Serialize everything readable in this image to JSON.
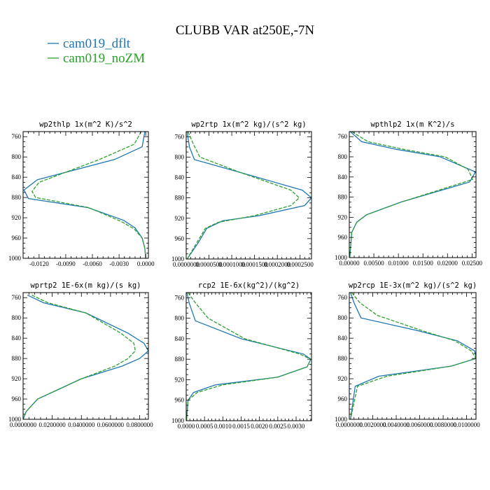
{
  "figure": {
    "title": "CLUBB VAR at250E,-7N"
  },
  "legend": [
    {
      "name": "cam019_dflt",
      "color": "#1f77b4",
      "dash": "solid"
    },
    {
      "name": "cam019_noZM",
      "color": "#2ca02c",
      "dash": "dash"
    }
  ],
  "chart_data": [
    {
      "type": "line",
      "title": "wp2thlp  1x(m^2 K)/s^2",
      "xlim": [
        -0.0138,
        0.0003
      ],
      "ylim": [
        1000,
        750
      ],
      "xticks": [
        -0.012,
        -0.009,
        -0.006,
        -0.003,
        0.0
      ],
      "xtick_labels": [
        "-0.0120",
        "-0.0090",
        "-0.0060",
        "-0.0030",
        "0.0000"
      ],
      "yticks": [
        760,
        800,
        840,
        880,
        920,
        960,
        1000
      ],
      "ytick_labels": [
        "760",
        "800",
        "840",
        "880",
        "920",
        "960",
        "1000"
      ],
      "series": [
        {
          "name": "cam019_dflt",
          "x": [
            -0.0001,
            -0.0004,
            -0.0035,
            -0.0122,
            -0.0137,
            -0.0132,
            -0.0065,
            -0.0025,
            -0.0012,
            -0.0004,
            -0.0001,
            0.0
          ],
          "y": [
            750,
            780,
            805,
            845,
            865,
            882,
            900,
            925,
            940,
            960,
            980,
            1000
          ]
        },
        {
          "name": "cam019_noZM",
          "x": [
            -0.0005,
            -0.0013,
            -0.0052,
            -0.012,
            -0.0128,
            -0.0124,
            -0.0064,
            -0.0028,
            -0.0013,
            -0.0004,
            -0.0001,
            0.0
          ],
          "y": [
            750,
            775,
            805,
            850,
            868,
            880,
            900,
            927,
            942,
            960,
            980,
            1000
          ]
        }
      ]
    },
    {
      "type": "line",
      "title": "wp2rtp  1x(m^2 kg)/(s^2 kg)",
      "xlim": [
        0.0,
        0.000275
      ],
      "ylim": [
        1000,
        750
      ],
      "xticks": [
        0.0,
        5e-05,
        0.0001,
        0.00015,
        0.0002,
        0.00025
      ],
      "xtick_labels": [
        "0.0000000",
        "0.0000500",
        "0.0001000",
        "0.0001500",
        "0.0002000",
        "0.0002500"
      ],
      "yticks": [
        760,
        800,
        840,
        880,
        920,
        960,
        1000
      ],
      "ytick_labels": [
        "760",
        "800",
        "840",
        "880",
        "920",
        "960",
        "1000"
      ],
      "series": [
        {
          "name": "cam019_dflt",
          "x": [
            2e-06,
            7e-06,
            1.8e-05,
            0.000118,
            0.000255,
            0.000275,
            0.00026,
            0.00016,
            8e-05,
            4.5e-05,
            2.5e-05,
            2e-06
          ],
          "y": [
            750,
            780,
            805,
            830,
            865,
            880,
            895,
            915,
            925,
            940,
            970,
            1000
          ]
        },
        {
          "name": "cam019_noZM",
          "x": [
            4e-06,
            1.6e-05,
            3e-05,
            0.000118,
            0.00023,
            0.000248,
            0.00023,
            0.00015,
            7e-05,
            4.2e-05,
            2.2e-05,
            2e-06
          ],
          "y": [
            750,
            775,
            800,
            830,
            865,
            880,
            895,
            915,
            928,
            940,
            970,
            1000
          ]
        }
      ]
    },
    {
      "type": "line",
      "title": "wpthlp2  1x(m K^2)/s",
      "xlim": [
        0.0,
        0.0258
      ],
      "ylim": [
        1000,
        750
      ],
      "xticks": [
        0.0,
        0.005,
        0.01,
        0.015,
        0.02,
        0.025
      ],
      "xtick_labels": [
        "0.00000",
        "0.00500",
        "0.01000",
        "0.01500",
        "0.02000",
        "0.02500"
      ],
      "yticks": [
        760,
        800,
        840,
        880,
        920,
        960,
        1000
      ],
      "ytick_labels": [
        "760",
        "800",
        "840",
        "880",
        "920",
        "960",
        "1000"
      ],
      "series": [
        {
          "name": "cam019_dflt",
          "x": [
            0.0002,
            0.0025,
            0.0095,
            0.0185,
            0.0257,
            0.0245,
            0.0105,
            0.0035,
            0.0015,
            0.0005,
            0.0001
          ],
          "y": [
            750,
            770,
            785,
            800,
            830,
            850,
            890,
            915,
            930,
            950,
            1000
          ]
        },
        {
          "name": "cam019_noZM",
          "x": [
            0.0005,
            0.0038,
            0.011,
            0.0195,
            0.0242,
            0.0251,
            0.0105,
            0.0035,
            0.0015,
            0.0005,
            0.0001
          ],
          "y": [
            750,
            770,
            785,
            800,
            825,
            845,
            890,
            915,
            930,
            950,
            1000
          ]
        }
      ]
    },
    {
      "type": "line",
      "title": "wprtp2  1E-6x(m kg)/(s kg)",
      "xlim": [
        0.0,
        0.086
      ],
      "ylim": [
        1000,
        750
      ],
      "xticks": [
        0.0,
        0.02,
        0.04,
        0.06,
        0.08
      ],
      "xtick_labels": [
        "0.0000000",
        "0.0200000",
        "0.0400000",
        "0.0600000",
        "0.0800000"
      ],
      "yticks": [
        760,
        800,
        840,
        880,
        920,
        960,
        1000
      ],
      "ytick_labels": [
        "760",
        "800",
        "840",
        "880",
        "920",
        "960",
        "1000"
      ],
      "series": [
        {
          "name": "cam019_dflt",
          "x": [
            0.003,
            0.014,
            0.043,
            0.072,
            0.083,
            0.086,
            0.08,
            0.068,
            0.04,
            0.025,
            0.01,
            0.002,
            0.0
          ],
          "y": [
            755,
            770,
            790,
            830,
            850,
            865,
            880,
            895,
            920,
            940,
            960,
            985,
            1000
          ]
        },
        {
          "name": "cam019_noZM",
          "x": [
            0.006,
            0.017,
            0.043,
            0.067,
            0.076,
            0.077,
            0.072,
            0.063,
            0.04,
            0.025,
            0.01,
            0.002,
            0.0
          ],
          "y": [
            755,
            770,
            790,
            830,
            850,
            865,
            880,
            895,
            920,
            940,
            960,
            985,
            1000
          ]
        }
      ]
    },
    {
      "type": "line",
      "title": "rcp2  1E-6x(kg^2)/(kg^2)",
      "xlim": [
        0.0,
        0.00342
      ],
      "ylim": [
        1000,
        750
      ],
      "xticks": [
        0.0,
        0.0005,
        0.001,
        0.0015,
        0.002,
        0.0025,
        0.003
      ],
      "xtick_labels": [
        "0.0000",
        "0.0005",
        "0.0010",
        "0.0015",
        "0.0020",
        "0.0025",
        "0.0030"
      ],
      "yticks": [
        760,
        800,
        840,
        880,
        920,
        960,
        1000
      ],
      "ytick_labels": [
        "760",
        "800",
        "840",
        "880",
        "920",
        "960",
        "1000"
      ],
      "series": [
        {
          "name": "cam019_dflt",
          "x": [
            2e-05,
            8e-05,
            0.00025,
            0.0015,
            0.0032,
            0.0034,
            0.0033,
            0.0025,
            0.0008,
            0.0002,
            5e-05,
            1e-05
          ],
          "y": [
            750,
            770,
            805,
            840,
            870,
            880,
            895,
            915,
            930,
            945,
            960,
            1000
          ]
        },
        {
          "name": "cam019_noZM",
          "x": [
            5e-05,
            0.00025,
            0.0006,
            0.0016,
            0.0031,
            0.0034,
            0.0033,
            0.0025,
            0.001,
            0.0003,
            5e-05,
            1e-05
          ],
          "y": [
            750,
            770,
            800,
            840,
            870,
            880,
            895,
            915,
            930,
            945,
            960,
            1000
          ]
        }
      ]
    },
    {
      "type": "line",
      "title": "wp2rcp  1E-3x(m^2 kg)/(s^2 kg)",
      "xlim": [
        0.0,
        0.0108
      ],
      "ylim": [
        1000,
        750
      ],
      "xticks": [
        0.0,
        0.002,
        0.004,
        0.006,
        0.008,
        0.01
      ],
      "xtick_labels": [
        "0.0000000",
        "0.0020000",
        "0.0040000",
        "0.0060000",
        "0.0080000",
        "0.0100000"
      ],
      "yticks": [
        760,
        800,
        840,
        880,
        920,
        960,
        1000
      ],
      "ytick_labels": [
        "760",
        "800",
        "840",
        "880",
        "920",
        "960",
        "1000"
      ],
      "series": [
        {
          "name": "cam019_dflt",
          "x": [
            0.0001,
            0.0004,
            0.001,
            0.0058,
            0.0092,
            0.0107,
            0.0108,
            0.0087,
            0.0025,
            0.0005,
            0.0001
          ],
          "y": [
            750,
            770,
            800,
            825,
            845,
            865,
            880,
            895,
            915,
            935,
            1000
          ]
        },
        {
          "name": "cam019_noZM",
          "x": [
            0.0002,
            0.0009,
            0.0024,
            0.0062,
            0.009,
            0.0104,
            0.0108,
            0.0087,
            0.0032,
            0.0007,
            0.0001
          ],
          "y": [
            750,
            770,
            795,
            825,
            845,
            865,
            880,
            895,
            915,
            935,
            1000
          ]
        }
      ]
    }
  ]
}
